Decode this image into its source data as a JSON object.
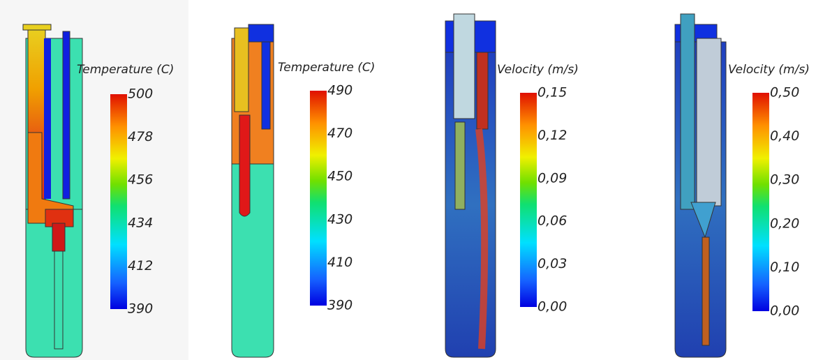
{
  "panels": [
    {
      "title": "Temperature (C)",
      "ticks": [
        "500",
        "478",
        "456",
        "434",
        "412",
        "390"
      ]
    },
    {
      "title": "Temperature (C)",
      "ticks": [
        "490",
        "470",
        "450",
        "430",
        "410",
        "390"
      ]
    },
    {
      "title": "Velocity (m/s)",
      "ticks": [
        "0,15",
        "0,12",
        "0,09",
        "0,06",
        "0,03",
        "0,00"
      ]
    },
    {
      "title": "Velocity (m/s)",
      "ticks": [
        "0,50",
        "0,40",
        "0,30",
        "0,20",
        "0,10",
        "0,00"
      ]
    }
  ]
}
